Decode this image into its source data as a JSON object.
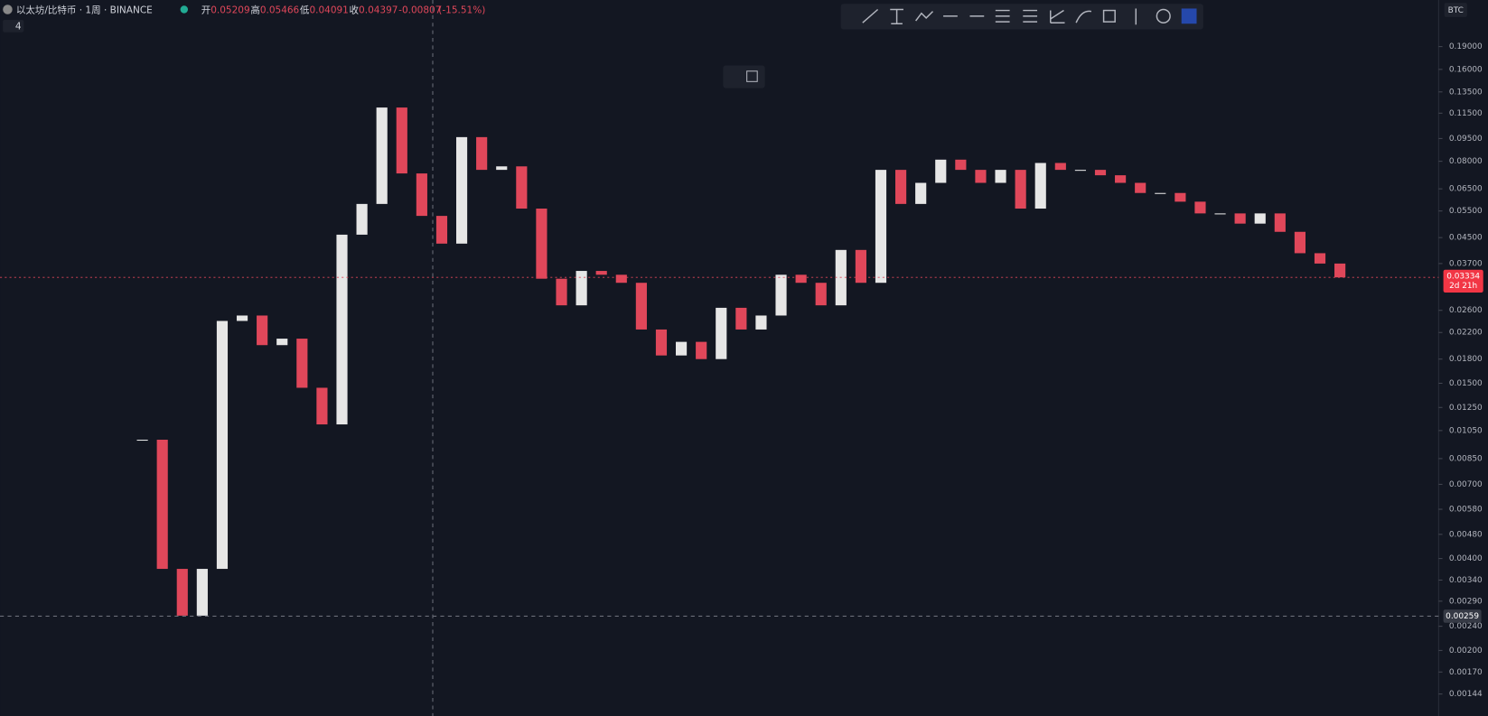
{
  "header": {
    "symbol": "以太坊/比特币 · 1周 · BINANCE",
    "interval_menu": "4",
    "currency": "BTC",
    "ohlc": [
      {
        "label": "开",
        "value": "0.05209"
      },
      {
        "label": "高",
        "value": "0.05466"
      },
      {
        "label": "低",
        "value": "0.04091"
      },
      {
        "label": "收",
        "value": "0.04397"
      }
    ],
    "change": "-0.00807",
    "change_pct": "(-15.51%)"
  },
  "chart_data": {
    "type": "candlestick",
    "log_scale": true,
    "up_color": "#e6e6e6",
    "down_color": "#e0475a",
    "categories": [
      null,
      null,
      null,
      null,
      null,
      null,
      null,
      null,
      null,
      null,
      null,
      null,
      null,
      null,
      null,
      null,
      null,
      null,
      null,
      null,
      null,
      null,
      null,
      null,
      null,
      null,
      null,
      null,
      null,
      null,
      null,
      null,
      null,
      null,
      null,
      null,
      null,
      null,
      null,
      null,
      null,
      null,
      null,
      null,
      null,
      null,
      null,
      null,
      null,
      null,
      null,
      null,
      null,
      null,
      null,
      null,
      null,
      null,
      null,
      null,
      null
    ],
    "values": [
      0.0098,
      0.0037,
      0.0026,
      0.0037,
      0.024,
      0.025,
      0.02,
      0.021,
      0.0145,
      0.011,
      0.046,
      0.058,
      0.12,
      0.073,
      0.053,
      0.043,
      0.096,
      0.075,
      0.077,
      0.056,
      0.033,
      0.027,
      0.035,
      0.034,
      0.032,
      0.0225,
      0.0185,
      0.0205,
      0.018,
      0.0265,
      0.0225,
      0.025,
      0.034,
      0.032,
      0.027,
      0.041,
      0.032,
      0.075,
      0.058,
      0.068,
      0.081,
      0.075,
      0.068,
      0.075,
      0.056,
      0.079,
      0.075,
      0.075,
      0.072,
      0.068,
      0.063,
      0.063,
      0.059,
      0.054,
      0.054,
      0.05,
      0.054,
      0.047,
      0.04,
      0.037,
      0.03334
    ],
    "ylim": [
      0.00122,
      0.27
    ],
    "yticks": [
      {
        "value": 0.19,
        "label": "0.19000"
      },
      {
        "value": 0.16,
        "label": "0.16000"
      },
      {
        "value": 0.135,
        "label": "0.13500"
      },
      {
        "value": 0.115,
        "label": "0.11500"
      },
      {
        "value": 0.095,
        "label": "0.09500"
      },
      {
        "value": 0.08,
        "label": "0.08000"
      },
      {
        "value": 0.065,
        "label": "0.06500"
      },
      {
        "value": 0.055,
        "label": "0.05500"
      },
      {
        "value": 0.045,
        "label": "0.04500"
      },
      {
        "value": 0.037,
        "label": "0.03700"
      },
      {
        "value": 0.026,
        "label": "0.02600"
      },
      {
        "value": 0.022,
        "label": "0.02200"
      },
      {
        "value": 0.018,
        "label": "0.01800"
      },
      {
        "value": 0.015,
        "label": "0.01500"
      },
      {
        "value": 0.0125,
        "label": "0.01250"
      },
      {
        "value": 0.0105,
        "label": "0.01050"
      },
      {
        "value": 0.0085,
        "label": "0.00850"
      },
      {
        "value": 0.007,
        "label": "0.00700"
      },
      {
        "value": 0.0058,
        "label": "0.00580"
      },
      {
        "value": 0.0048,
        "label": "0.00480"
      },
      {
        "value": 0.004,
        "label": "0.00400"
      },
      {
        "value": 0.0034,
        "label": "0.00340"
      },
      {
        "value": 0.0029,
        "label": "0.00290"
      },
      {
        "value": 0.0024,
        "label": "0.00240"
      },
      {
        "value": 0.002,
        "label": "0.00200"
      },
      {
        "value": 0.0017,
        "label": "0.00170"
      },
      {
        "value": 0.00144,
        "label": "0.00144"
      }
    ],
    "last_price": 0.03334,
    "last_price_countdown": "2d 21h",
    "crosshair_price": 0.00259
  }
}
